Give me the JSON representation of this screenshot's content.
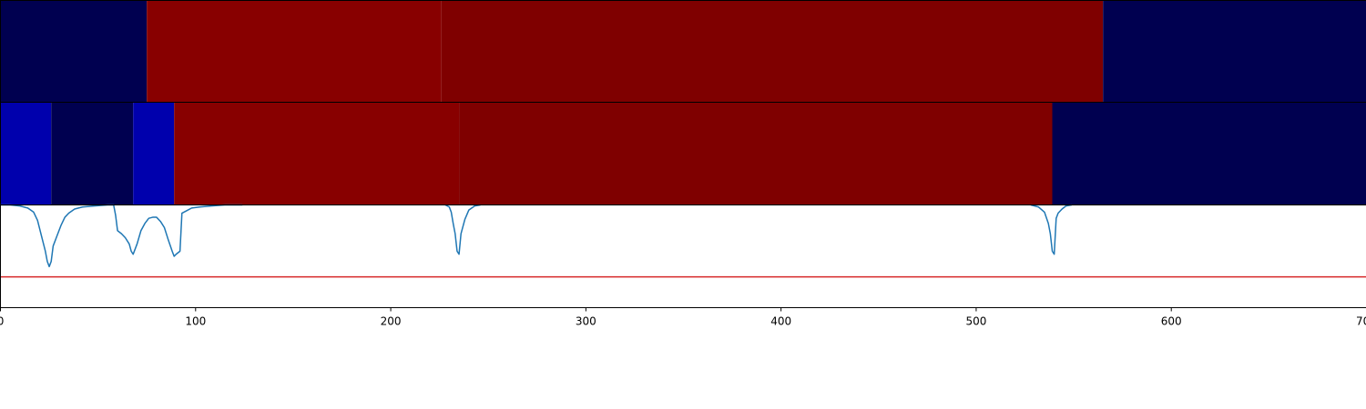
{
  "chart_data": [
    {
      "type": "heatmap",
      "panel": "top-band",
      "colors": {
        "navy": "#000050",
        "red": "#880000",
        "dark_red": "#7f0000"
      },
      "segments": [
        {
          "x0": 0,
          "x1": 75,
          "color": "#000050"
        },
        {
          "x0": 75,
          "x1": 226,
          "color": "#880000"
        },
        {
          "x0": 226,
          "x1": 565,
          "color": "#7f0000"
        },
        {
          "x0": 565,
          "x1": 700,
          "color": "#000050"
        }
      ]
    },
    {
      "type": "heatmap",
      "panel": "middle-band",
      "colors": {
        "blue": "#0000ad",
        "navy": "#000050",
        "red": "#880000",
        "dark_red": "#7f0000"
      },
      "segments": [
        {
          "x0": 0,
          "x1": 26,
          "color": "#0000ad"
        },
        {
          "x0": 26,
          "x1": 68,
          "color": "#000050"
        },
        {
          "x0": 68,
          "x1": 89,
          "color": "#0000ad"
        },
        {
          "x0": 89,
          "x1": 235,
          "color": "#880000"
        },
        {
          "x0": 235,
          "x1": 539,
          "color": "#7f0000"
        },
        {
          "x0": 539,
          "x1": 700,
          "color": "#000050"
        }
      ]
    },
    {
      "type": "line",
      "panel": "bottom-signal",
      "line_color": "#1f77b4",
      "threshold_color": "#d62728",
      "threshold": 0.3,
      "ylim": [
        0,
        1
      ],
      "xlim": [
        0,
        700
      ],
      "xticks": [
        "0",
        "100",
        "200",
        "300",
        "400",
        "500",
        "600",
        "700"
      ],
      "grid": false,
      "series": [
        {
          "x": [
            0,
            5,
            10,
            14,
            17,
            19,
            21,
            23,
            24,
            25,
            26,
            27,
            29,
            31,
            33,
            35,
            38,
            42,
            48,
            55,
            58,
            59,
            60,
            62,
            64,
            66,
            67,
            68,
            70,
            72,
            74,
            76,
            78,
            80,
            82,
            84,
            86,
            88,
            89,
            90,
            92,
            93,
            95,
            98,
            102,
            108,
            115,
            124
          ],
          "y": [
            1.0,
            1.0,
            0.99,
            0.97,
            0.93,
            0.85,
            0.7,
            0.55,
            0.45,
            0.4,
            0.45,
            0.6,
            0.7,
            0.8,
            0.88,
            0.92,
            0.96,
            0.98,
            0.99,
            1.0,
            1.0,
            0.9,
            0.75,
            0.72,
            0.68,
            0.62,
            0.55,
            0.52,
            0.62,
            0.75,
            0.82,
            0.87,
            0.88,
            0.88,
            0.84,
            0.78,
            0.66,
            0.55,
            0.5,
            0.52,
            0.55,
            0.92,
            0.94,
            0.97,
            0.98,
            0.99,
            1.0,
            1.0
          ]
        },
        {
          "x": [
            228,
            230,
            231,
            232,
            233,
            234,
            235,
            236,
            238,
            240,
            243,
            246
          ],
          "y": [
            1.0,
            0.98,
            0.93,
            0.82,
            0.72,
            0.55,
            0.52,
            0.72,
            0.86,
            0.95,
            0.99,
            1.0
          ]
        },
        {
          "x": [
            528,
            532,
            535,
            537,
            538,
            539,
            540,
            541,
            542,
            544,
            546,
            549
          ],
          "y": [
            1.0,
            0.98,
            0.93,
            0.82,
            0.72,
            0.55,
            0.52,
            0.87,
            0.92,
            0.96,
            0.99,
            1.0
          ]
        }
      ]
    }
  ]
}
